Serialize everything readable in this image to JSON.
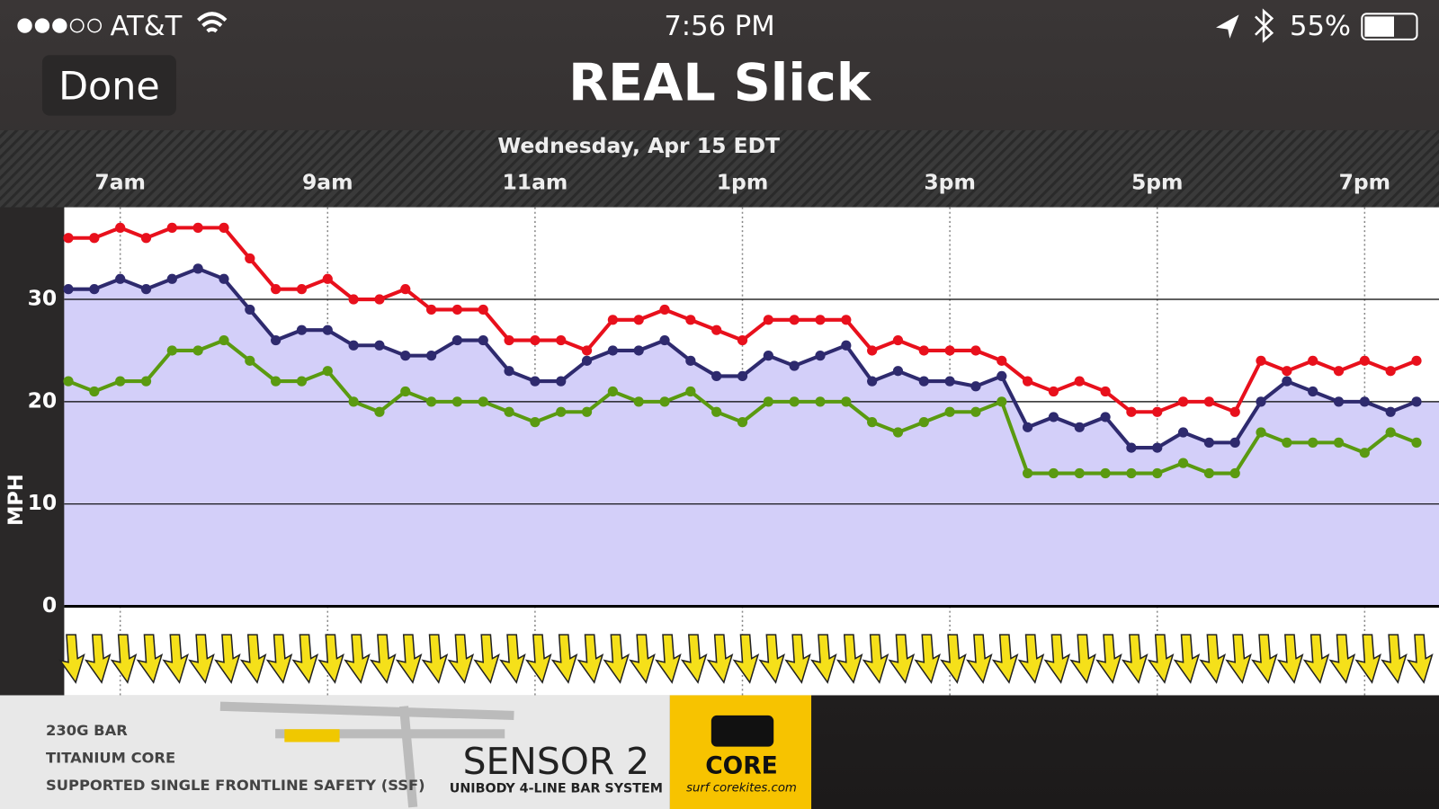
{
  "status_bar": {
    "carrier": "AT&T",
    "time": "7:56 PM",
    "battery": "55%"
  },
  "nav": {
    "back": "Done",
    "title": "REAL Slick"
  },
  "chart_data": {
    "type": "line",
    "subtitle": "Wednesday, Apr 15 EDT",
    "y_label": "MPH",
    "categories": [
      null,
      null,
      "7am",
      null,
      null,
      null,
      null,
      null,
      null,
      null,
      "9am",
      null,
      null,
      null,
      null,
      null,
      null,
      null,
      "11am",
      null,
      null,
      null,
      null,
      null,
      null,
      null,
      "1pm",
      null,
      null,
      null,
      null,
      null,
      null,
      null,
      "3pm",
      null,
      null,
      null,
      null,
      null,
      null,
      null,
      "5pm",
      null,
      null,
      null,
      null,
      null,
      null,
      null,
      "7pm",
      null,
      null
    ],
    "series": [
      {
        "color": "#e8101c",
        "values": [
          36,
          36,
          37,
          36,
          37,
          37,
          37,
          34,
          31,
          31,
          32,
          30,
          30,
          31,
          29,
          29,
          29,
          26,
          26,
          26,
          25,
          28,
          28,
          29,
          28,
          27,
          26,
          28,
          28,
          28,
          28,
          25,
          26,
          25,
          25,
          25,
          24,
          22,
          21,
          22,
          21,
          19,
          19,
          20,
          20,
          19,
          24,
          23,
          24,
          23,
          24,
          23,
          24
        ]
      },
      {
        "color": "#2e2a6e",
        "area_color": "#d3cff9",
        "values": [
          31,
          31,
          32,
          31,
          32,
          33,
          32,
          29,
          26,
          27,
          27,
          25.5,
          25.5,
          24.5,
          24.5,
          26,
          26,
          23,
          22,
          22,
          24,
          25,
          25,
          26,
          24,
          22.5,
          22.5,
          24.5,
          23.5,
          24.5,
          25.5,
          22,
          23,
          22,
          22,
          21.5,
          22.5,
          17.5,
          18.5,
          17.5,
          18.5,
          15.5,
          15.5,
          17,
          16,
          16,
          20,
          22,
          21,
          20,
          20,
          19,
          20
        ]
      },
      {
        "color": "#5a9a10",
        "values": [
          22,
          21,
          22,
          22,
          25,
          25,
          26,
          24,
          22,
          22,
          23,
          20,
          19,
          21,
          20,
          20,
          20,
          19,
          18,
          19,
          19,
          21,
          20,
          20,
          21,
          19,
          18,
          20,
          20,
          20,
          20,
          18,
          17,
          18,
          19,
          19,
          20,
          13,
          13,
          13,
          13,
          13,
          13,
          14,
          13,
          13,
          17,
          16,
          16,
          16,
          15,
          17,
          16
        ]
      }
    ],
    "ylim": [
      0,
      39
    ],
    "yticks": [
      0,
      10,
      20,
      30
    ],
    "grid": true
  },
  "ad": {
    "features": [
      "230G BAR",
      "TITANIUM CORE",
      "SUPPORTED SINGLE FRONTLINE SAFETY (SSF)"
    ],
    "product": "SENSOR 2",
    "tagline": "UNIBODY 4-LINE BAR SYSTEM",
    "brand": "CORE",
    "url": "surf corekites.com"
  }
}
